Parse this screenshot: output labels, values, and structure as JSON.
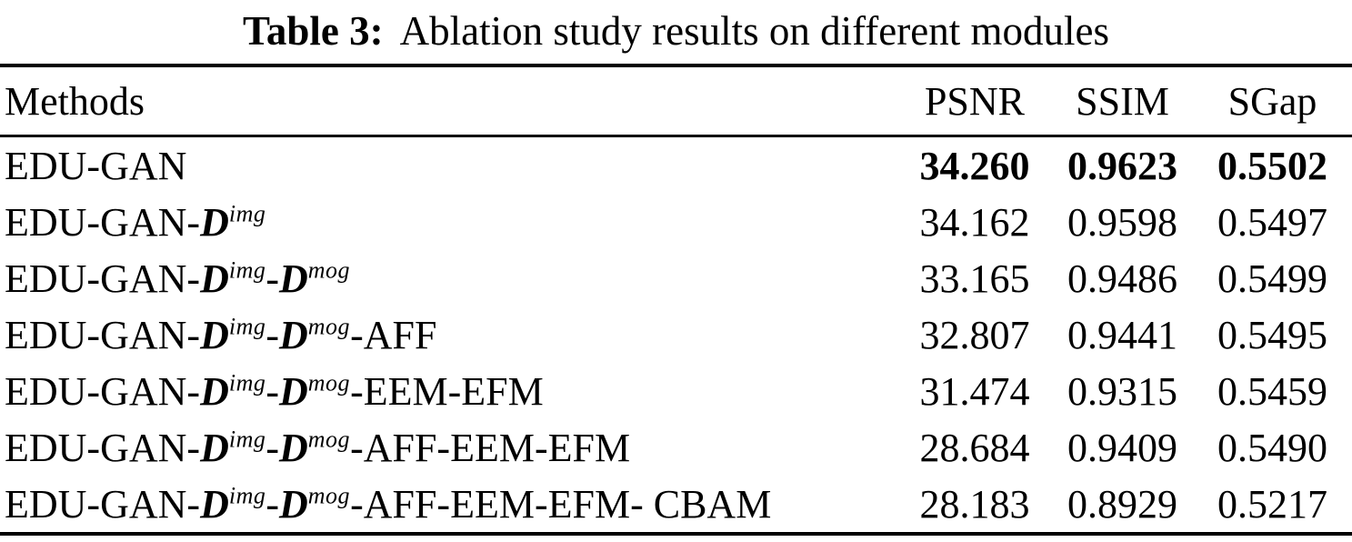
{
  "title": {
    "prefix": "Table 3:",
    "text": "Ablation study results on different modules"
  },
  "colors": {
    "text": "#000000",
    "background": "#ffffff",
    "rule": "#000000"
  },
  "table": {
    "headers": {
      "methods": "Methods",
      "psnr": "PSNR",
      "ssim": "SSIM",
      "sgap": "SGap"
    },
    "rows": [
      {
        "method": [
          {
            "text": "EDU-GAN",
            "kind": "plain"
          }
        ],
        "psnr": "34.260",
        "ssim": "0.9623",
        "sgap": "0.5502",
        "best": true
      },
      {
        "method": [
          {
            "text": "EDU-GAN-",
            "kind": "plain"
          },
          {
            "text": "D",
            "kind": "var"
          },
          {
            "text": "img",
            "kind": "sup"
          }
        ],
        "psnr": "34.162",
        "ssim": "0.9598",
        "sgap": "0.5497",
        "best": false
      },
      {
        "method": [
          {
            "text": "EDU-GAN-",
            "kind": "plain"
          },
          {
            "text": "D",
            "kind": "var"
          },
          {
            "text": "img",
            "kind": "sup"
          },
          {
            "text": "-",
            "kind": "plain"
          },
          {
            "text": "D",
            "kind": "var"
          },
          {
            "text": "mog",
            "kind": "sup"
          }
        ],
        "psnr": "33.165",
        "ssim": "0.9486",
        "sgap": "0.5499",
        "best": false
      },
      {
        "method": [
          {
            "text": "EDU-GAN-",
            "kind": "plain"
          },
          {
            "text": "D",
            "kind": "var"
          },
          {
            "text": "img",
            "kind": "sup"
          },
          {
            "text": "-",
            "kind": "plain"
          },
          {
            "text": "D",
            "kind": "var"
          },
          {
            "text": "mog",
            "kind": "sup"
          },
          {
            "text": "-AFF",
            "kind": "plain"
          }
        ],
        "psnr": "32.807",
        "ssim": "0.9441",
        "sgap": "0.5495",
        "best": false
      },
      {
        "method": [
          {
            "text": "EDU-GAN-",
            "kind": "plain"
          },
          {
            "text": "D",
            "kind": "var"
          },
          {
            "text": "img",
            "kind": "sup"
          },
          {
            "text": "-",
            "kind": "plain"
          },
          {
            "text": "D",
            "kind": "var"
          },
          {
            "text": "mog",
            "kind": "sup"
          },
          {
            "text": "-EEM-EFM",
            "kind": "plain"
          }
        ],
        "psnr": "31.474",
        "ssim": "0.9315",
        "sgap": "0.5459",
        "best": false
      },
      {
        "method": [
          {
            "text": "EDU-GAN-",
            "kind": "plain"
          },
          {
            "text": "D",
            "kind": "var"
          },
          {
            "text": "img",
            "kind": "sup"
          },
          {
            "text": "-",
            "kind": "plain"
          },
          {
            "text": "D",
            "kind": "var"
          },
          {
            "text": "mog",
            "kind": "sup"
          },
          {
            "text": "-AFF-EEM-EFM",
            "kind": "plain"
          }
        ],
        "psnr": "28.684",
        "ssim": "0.9409",
        "sgap": "0.5490",
        "best": false
      },
      {
        "method": [
          {
            "text": "EDU-GAN-",
            "kind": "plain"
          },
          {
            "text": "D",
            "kind": "var"
          },
          {
            "text": "img",
            "kind": "sup"
          },
          {
            "text": "-",
            "kind": "plain"
          },
          {
            "text": "D",
            "kind": "var"
          },
          {
            "text": "mog",
            "kind": "sup"
          },
          {
            "text": "-AFF-EEM-EFM- CBAM",
            "kind": "plain"
          }
        ],
        "psnr": "28.183",
        "ssim": "0.8929",
        "sgap": "0.5217",
        "best": false
      }
    ]
  }
}
